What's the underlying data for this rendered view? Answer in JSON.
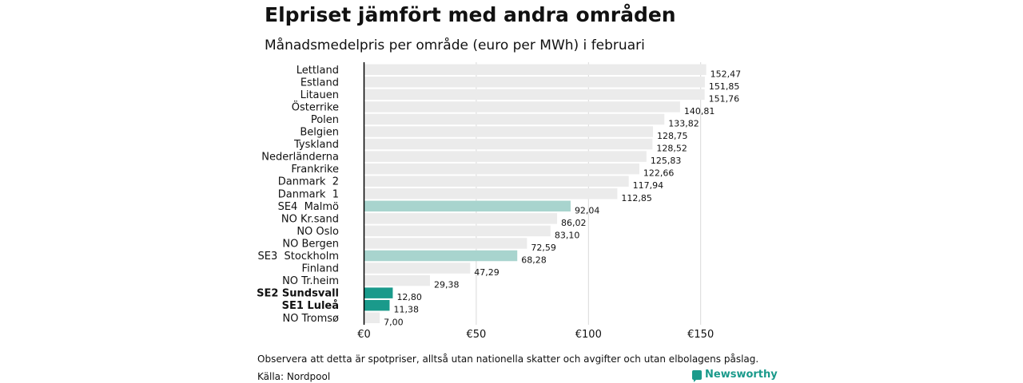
{
  "header": {
    "title": "Elpriset jämfört med andra områden",
    "subtitle": "Månadsmedelpris per område (euro per MWh) i februari"
  },
  "footer": {
    "note": "Observera att detta är spotpriser, alltså utan nationella skatter och avgifter och utan elbolagens påslag.",
    "source": "Källa: Nordpool",
    "brand": "Newsworthy"
  },
  "colors": {
    "default_bar": "#ebebeb",
    "highlight_light": "#a8d4ce",
    "highlight_dark": "#1a9a8b",
    "axis_line": "#000000",
    "gridline": "#d9d9d9"
  },
  "chart_data": {
    "type": "bar",
    "orientation": "horizontal",
    "categories": [
      "Lettland",
      "Estland",
      "Litauen",
      "Österrike",
      "Polen",
      "Belgien",
      "Tyskland",
      "Nederländerna",
      "Frankrike",
      "Danmark  2",
      "Danmark  1",
      "SE4  Malmö",
      "NO Kr.sand",
      "NO Oslo",
      "NO Bergen",
      "SE3  Stockholm",
      "Finland",
      "NO Tr.heim",
      "SE2 Sundsvall",
      "SE1 Luleå",
      "NO Tromsø"
    ],
    "values": [
      152.47,
      151.85,
      151.76,
      140.81,
      133.82,
      128.75,
      128.52,
      125.83,
      122.66,
      117.94,
      112.85,
      92.04,
      86.02,
      83.1,
      72.59,
      68.28,
      47.29,
      29.38,
      12.8,
      11.38,
      7.0
    ],
    "value_labels": [
      "152,47",
      "151,85",
      "151,76",
      "140,81",
      "133,82",
      "128,75",
      "128,52",
      "125,83",
      "122,66",
      "117,94",
      "112,85",
      "92,04",
      "86,02",
      "83,10",
      "72,59",
      "68,28",
      "47,29",
      "29,38",
      "12,80",
      "11,38",
      "7,00"
    ],
    "highlight": [
      "none",
      "none",
      "none",
      "none",
      "none",
      "none",
      "none",
      "none",
      "none",
      "none",
      "none",
      "light",
      "none",
      "none",
      "none",
      "light",
      "none",
      "none",
      "dark",
      "dark",
      "none"
    ],
    "bold_labels": [
      false,
      false,
      false,
      false,
      false,
      false,
      false,
      false,
      false,
      false,
      false,
      false,
      false,
      false,
      false,
      false,
      false,
      false,
      true,
      true,
      false
    ],
    "xlim": [
      0,
      160
    ],
    "x_ticks": [
      0,
      50,
      100,
      150
    ],
    "x_tick_labels": [
      "€0",
      "€50",
      "€100",
      "€150"
    ],
    "grid": "vertical",
    "legend": "none"
  }
}
